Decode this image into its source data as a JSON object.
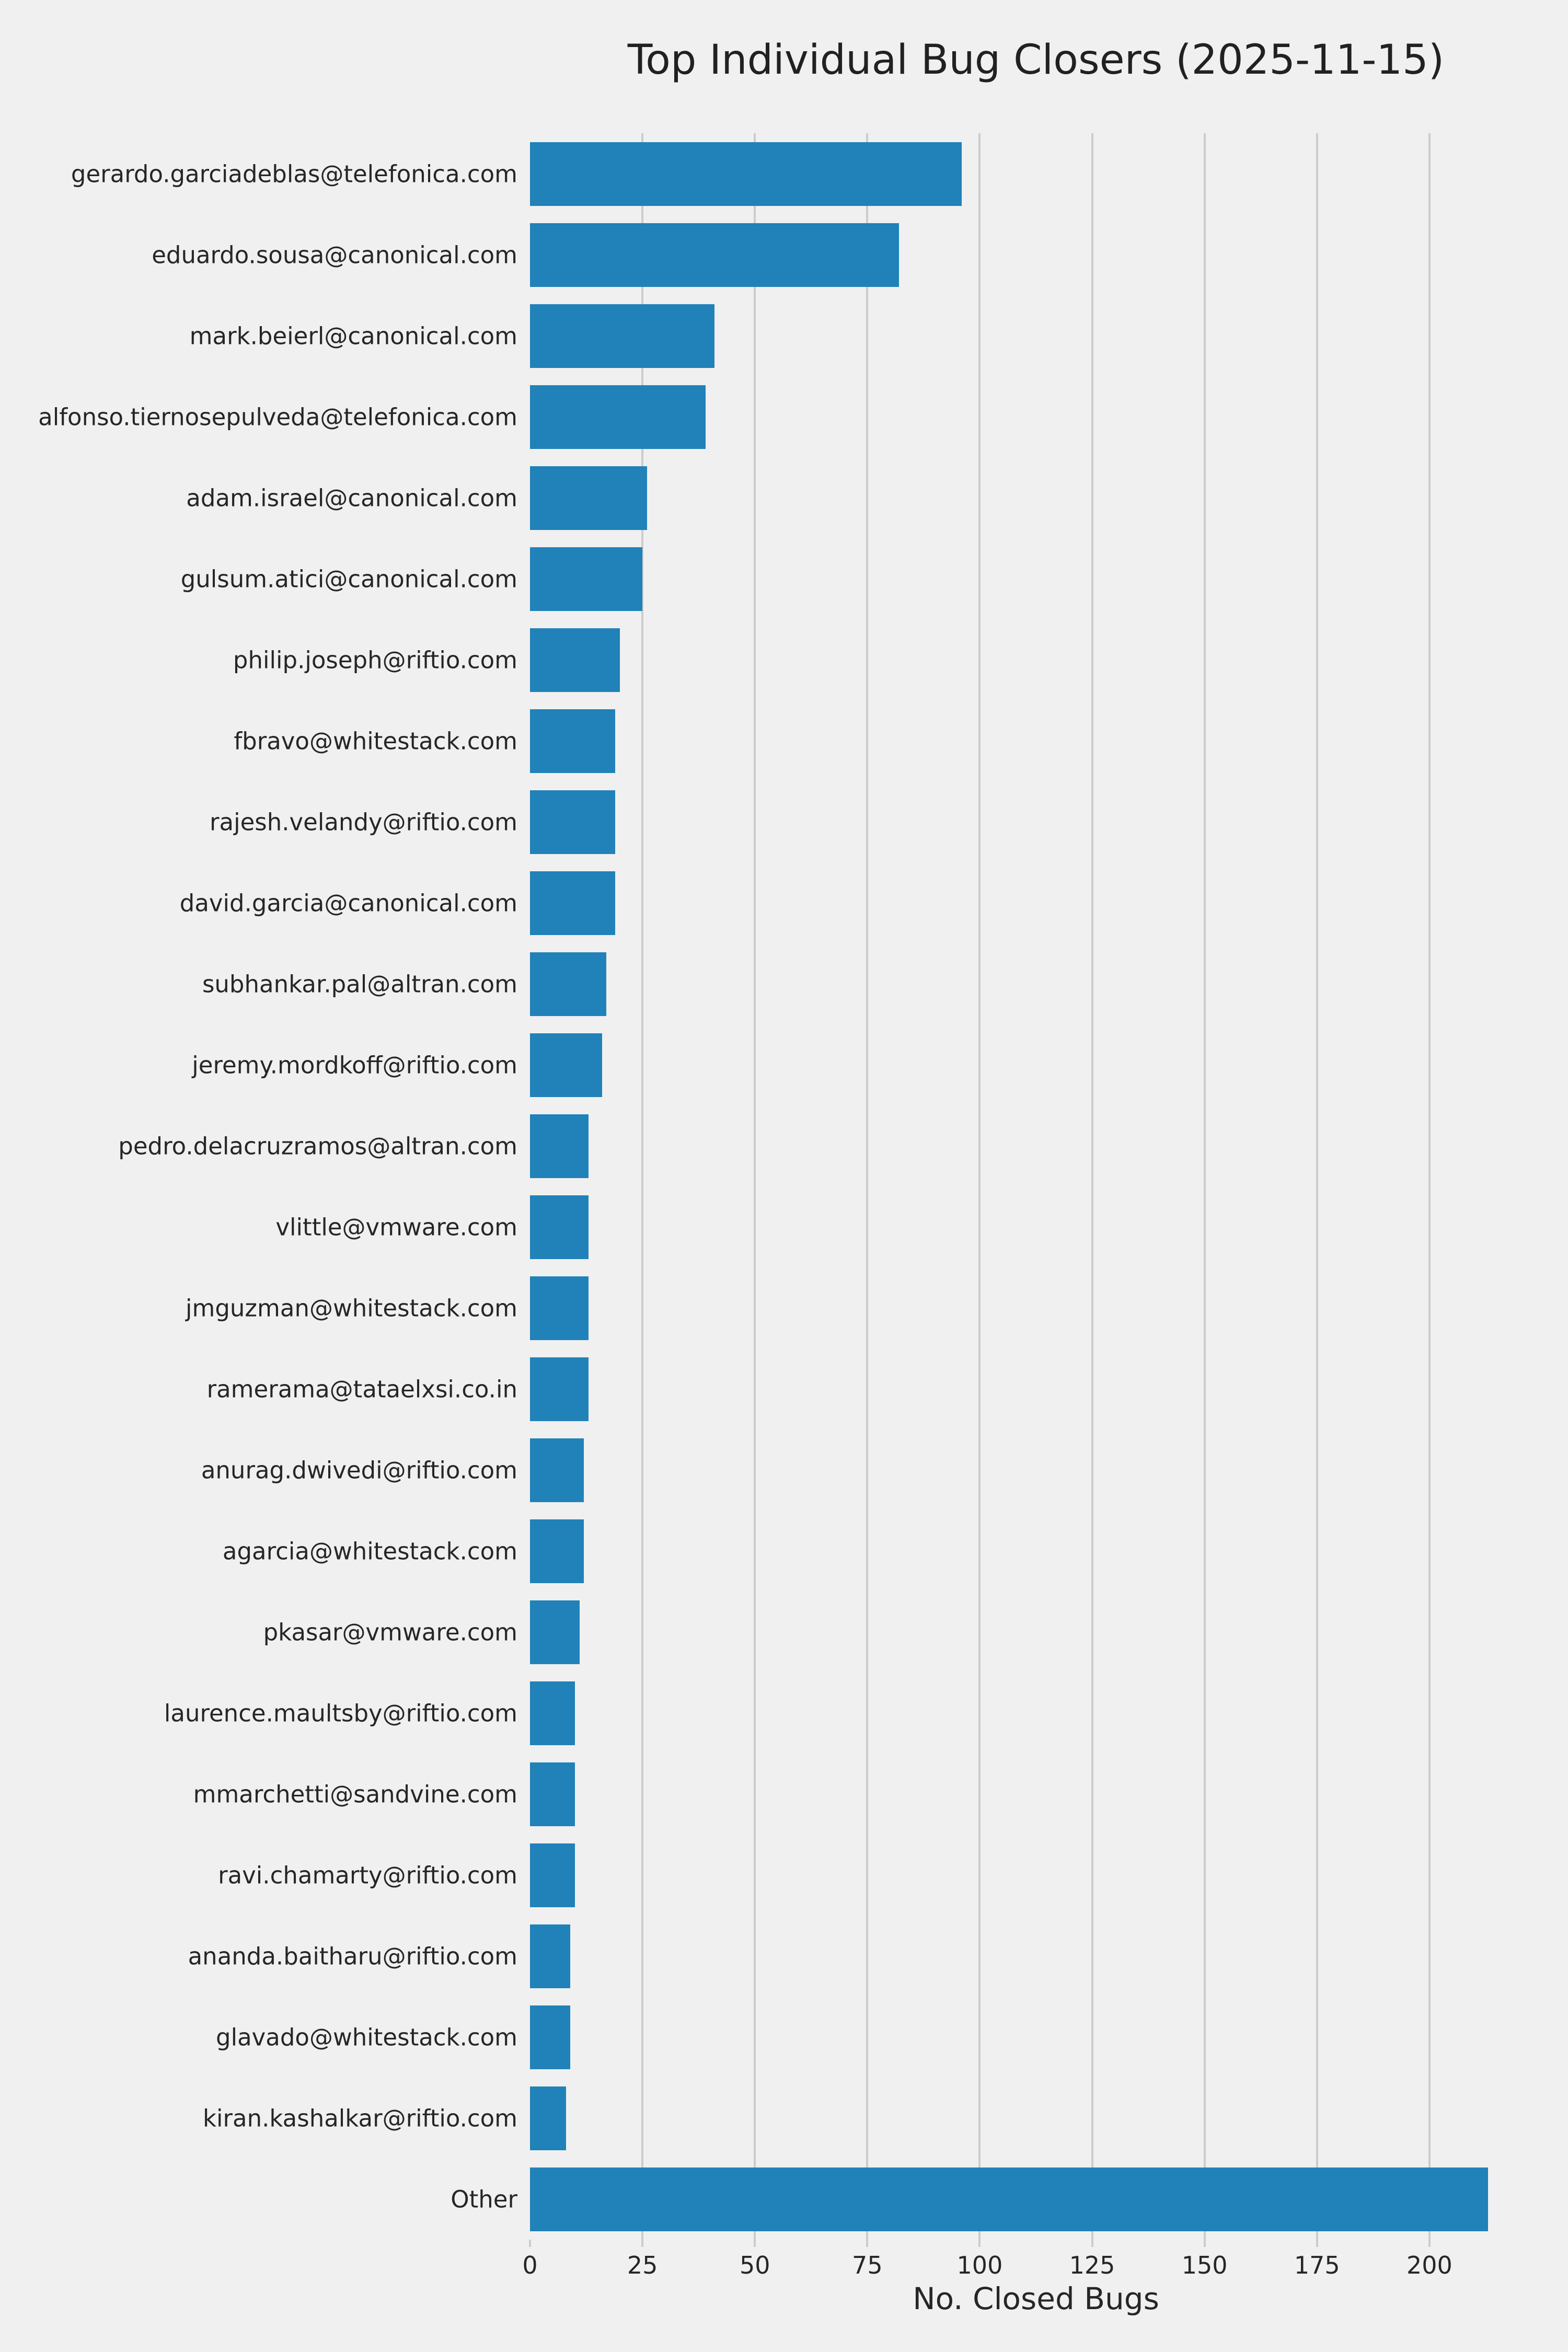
{
  "chart_data": {
    "type": "bar",
    "orientation": "horizontal",
    "title": "Top Individual Bug Closers (2025-11-15)",
    "xlabel": "No. Closed Bugs",
    "ylabel": "",
    "categories": [
      "gerardo.garciadeblas@telefonica.com",
      "eduardo.sousa@canonical.com",
      "mark.beierl@canonical.com",
      "alfonso.tiernosepulveda@telefonica.com",
      "adam.israel@canonical.com",
      "gulsum.atici@canonical.com",
      "philip.joseph@riftio.com",
      "fbravo@whitestack.com",
      "rajesh.velandy@riftio.com",
      "david.garcia@canonical.com",
      "subhankar.pal@altran.com",
      "jeremy.mordkoff@riftio.com",
      "pedro.delacruzramos@altran.com",
      "vlittle@vmware.com",
      "jmguzman@whitestack.com",
      "ramerama@tataelxsi.co.in",
      "anurag.dwivedi@riftio.com",
      "agarcia@whitestack.com",
      "pkasar@vmware.com",
      "laurence.maultsby@riftio.com",
      "mmarchetti@sandvine.com",
      "ravi.chamarty@riftio.com",
      "ananda.baitharu@riftio.com",
      "glavado@whitestack.com",
      "kiran.kashalkar@riftio.com",
      "Other"
    ],
    "values": [
      96,
      82,
      41,
      39,
      26,
      25,
      20,
      19,
      19,
      19,
      17,
      16,
      13,
      13,
      13,
      13,
      12,
      12,
      11,
      10,
      10,
      10,
      9,
      9,
      8,
      213
    ],
    "xlim": [
      0,
      225
    ],
    "xticks": [
      0,
      25,
      50,
      75,
      100,
      125,
      150,
      175,
      200
    ],
    "grid": true,
    "legend_position": "none",
    "colors": {
      "bar": "#2082b8",
      "background": "#f0f0f0",
      "grid": "#cccccc",
      "text": "#262626",
      "title": "#212121"
    }
  }
}
